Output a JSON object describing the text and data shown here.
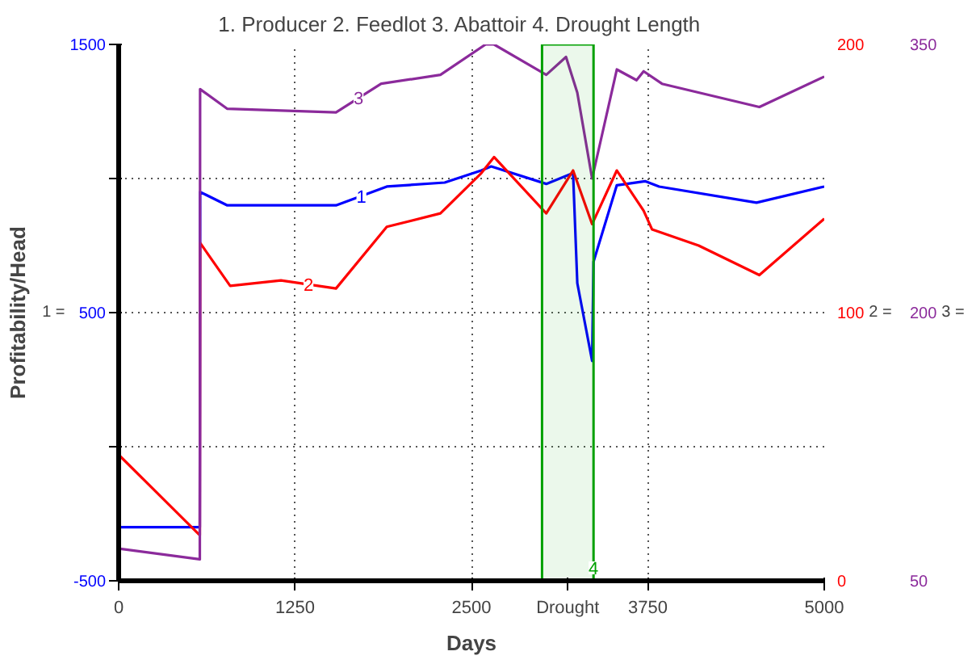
{
  "chart_data": {
    "type": "line",
    "title": "1. Producer  2. Feedlot   3. Abattoir  4. Drought Length",
    "xlabel": "Days",
    "ylabel": "Profitability/Head",
    "xlim": [
      0,
      5000
    ],
    "xticks": [
      0,
      1250,
      2500,
      3750,
      5000
    ],
    "ylim": [
      -500,
      1500
    ],
    "yticks": [
      -500,
      {
        "value": 0,
        "label": null
      },
      500,
      {
        "value": 1000,
        "label": null
      },
      1500
    ],
    "y2lim": [
      0,
      200
    ],
    "y2ticks": [
      0,
      100,
      200
    ],
    "y3lim": [
      50,
      350
    ],
    "y3ticks": [
      50,
      200,
      350
    ],
    "grid": true,
    "series": [
      {
        "name": "1",
        "color": "#0000ff",
        "axis": "y",
        "x": [
          0,
          575,
          577,
          770,
          940,
          1540,
          1900,
          2310,
          2570,
          2640,
          3030,
          3220,
          3250,
          3355,
          3365,
          3530,
          3730,
          3830,
          4520,
          5000
        ],
        "values": [
          -300,
          -300,
          950,
          900,
          900,
          900,
          970,
          985,
          1030,
          1045,
          980,
          1020,
          610,
          320,
          690,
          975,
          990,
          970,
          910,
          970
        ]
      },
      {
        "name": "2",
        "color": "#ff0000",
        "axis": "y2",
        "x": [
          0,
          575,
          577,
          790,
          1150,
          1540,
          1900,
          2280,
          2570,
          2660,
          3030,
          3220,
          3355,
          3530,
          3720,
          3780,
          4110,
          4540,
          5000
        ],
        "values": [
          47,
          17,
          126,
          110,
          112,
          109,
          132,
          137,
          152,
          158,
          137,
          153,
          133,
          153,
          138,
          131,
          125,
          114,
          135
        ]
      },
      {
        "name": "3",
        "color": "#8b2a9b",
        "axis": "y3",
        "x": [
          0,
          575,
          577,
          770,
          1540,
          1860,
          2280,
          2600,
          2660,
          3030,
          3170,
          3250,
          3355,
          3530,
          3670,
          3720,
          3850,
          4540,
          5000
        ],
        "values": [
          68,
          62,
          325,
          314,
          312,
          328,
          333,
          350,
          350,
          333,
          343,
          323,
          275,
          336,
          330,
          335,
          328,
          315,
          332
        ]
      }
    ],
    "bands": [
      {
        "axis": "x",
        "from": 3000,
        "to": 3365,
        "label": "Drought",
        "color": "#00a000"
      }
    ],
    "annotations": [
      "1 =",
      "2 =",
      "3 =",
      {
        "text": "4",
        "x": 3365,
        "y": -500
      }
    ]
  }
}
